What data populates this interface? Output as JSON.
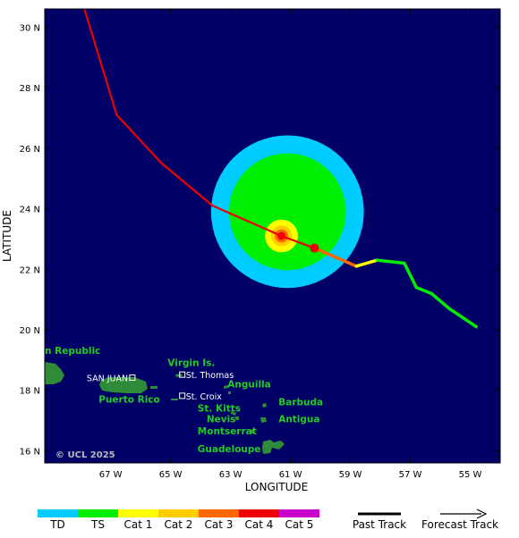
{
  "map": {
    "xlabel": "LONGITUDE",
    "ylabel": "LATITUDE",
    "copyright": "© UCL 2025",
    "lon_ticks": [
      "67 W",
      "65 W",
      "63 W",
      "61 W",
      "59 W",
      "57 W",
      "55 W"
    ],
    "lat_ticks": [
      "30 N",
      "28 N",
      "26 N",
      "24 N",
      "22 N",
      "20 N",
      "18 N",
      "16 N"
    ],
    "lon_range": [
      -69.2,
      -54.0
    ],
    "lat_range": [
      15.6,
      30.6
    ],
    "ocean_color": "#000066",
    "land_color": "#2e8b3a"
  },
  "places": [
    {
      "name": "n Republic",
      "lon": -69.2,
      "lat": 19.2,
      "style": "green"
    },
    {
      "name": "Virgin Is.",
      "lon": -65.1,
      "lat": 18.8,
      "style": "green"
    },
    {
      "name": "St. Thomas",
      "lon": -64.7,
      "lat": 18.4,
      "style": "white"
    },
    {
      "name": "SAN JUAN",
      "lon": -67.8,
      "lat": 18.3,
      "style": "white"
    },
    {
      "name": "Anguilla",
      "lon": -63.1,
      "lat": 18.1,
      "style": "green"
    },
    {
      "name": "Puerto Rico",
      "lon": -67.4,
      "lat": 17.6,
      "style": "green"
    },
    {
      "name": "St. Croix",
      "lon": -64.7,
      "lat": 17.7,
      "style": "white"
    },
    {
      "name": "Barbuda",
      "lon": -61.4,
      "lat": 17.5,
      "style": "green"
    },
    {
      "name": "St. Kitts",
      "lon": -64.1,
      "lat": 17.3,
      "style": "green"
    },
    {
      "name": "Nevis",
      "lon": -63.8,
      "lat": 16.95,
      "style": "green"
    },
    {
      "name": "Antigua",
      "lon": -61.4,
      "lat": 16.95,
      "style": "green"
    },
    {
      "name": "Montserrat",
      "lon": -64.1,
      "lat": 16.55,
      "style": "green"
    },
    {
      "name": "Guadeloupe",
      "lon": -64.1,
      "lat": 15.95,
      "style": "green"
    }
  ],
  "storm": {
    "current_position": {
      "lon": -61.3,
      "lat": 23.1
    },
    "wind_fields": [
      {
        "level": "TD",
        "lon": -61.1,
        "lat": 23.9,
        "radius_deg": 2.55,
        "color": "#00ccff"
      },
      {
        "level": "TS",
        "lon": -61.1,
        "lat": 23.9,
        "radius_deg": 1.95,
        "color": "#00ee00"
      },
      {
        "level": "Cat 1",
        "lon": -61.3,
        "lat": 23.1,
        "radius_deg": 0.55,
        "color": "#ffff00"
      },
      {
        "level": "Cat 2",
        "lon": -61.3,
        "lat": 23.1,
        "radius_deg": 0.35,
        "color": "#ffcc00"
      },
      {
        "level": "Cat 3",
        "lon": -61.3,
        "lat": 23.1,
        "radius_deg": 0.22,
        "color": "#ff6600"
      },
      {
        "level": "Cat 4",
        "lon": -61.3,
        "lat": 23.1,
        "radius_deg": 0.13,
        "color": "#ee0000"
      }
    ],
    "past_track": [
      {
        "lon": -68.0,
        "lat": 31.0,
        "color": "#ee0000"
      },
      {
        "lon": -66.8,
        "lat": 27.1,
        "color": "#ee0000"
      },
      {
        "lon": -65.3,
        "lat": 25.5,
        "color": "#ee0000"
      },
      {
        "lon": -63.6,
        "lat": 24.1,
        "color": "#ee0000"
      },
      {
        "lon": -61.3,
        "lat": 23.1,
        "color": "#ee0000"
      },
      {
        "lon": -60.2,
        "lat": 22.7,
        "color": "#ee0000"
      }
    ],
    "forecast_track": [
      {
        "lon": -60.2,
        "lat": 22.7,
        "color": "#ee0000"
      },
      {
        "lon": -58.8,
        "lat": 22.1,
        "color": "#ff6600"
      },
      {
        "lon": -58.1,
        "lat": 22.3,
        "color": "#ffff00"
      },
      {
        "lon": -57.2,
        "lat": 22.2,
        "color": "#00ee00"
      },
      {
        "lon": -56.8,
        "lat": 21.4,
        "color": "#00ee00"
      },
      {
        "lon": -56.3,
        "lat": 21.2,
        "color": "#00ee00"
      },
      {
        "lon": -55.7,
        "lat": 20.7,
        "color": "#00ee00"
      },
      {
        "lon": -54.8,
        "lat": 20.1,
        "color": "#00ee00"
      }
    ]
  },
  "legend": {
    "categories": [
      {
        "label": "TD",
        "color": "#00ccff"
      },
      {
        "label": "TS",
        "color": "#00ee00"
      },
      {
        "label": "Cat 1",
        "color": "#ffff00"
      },
      {
        "label": "Cat 2",
        "color": "#ffcc00"
      },
      {
        "label": "Cat 3",
        "color": "#ff6600"
      },
      {
        "label": "Cat 4",
        "color": "#ee0000"
      },
      {
        "label": "Cat 5",
        "color": "#cc00cc"
      }
    ],
    "past_track_label": "Past Track",
    "forecast_track_label": "Forecast Track"
  }
}
